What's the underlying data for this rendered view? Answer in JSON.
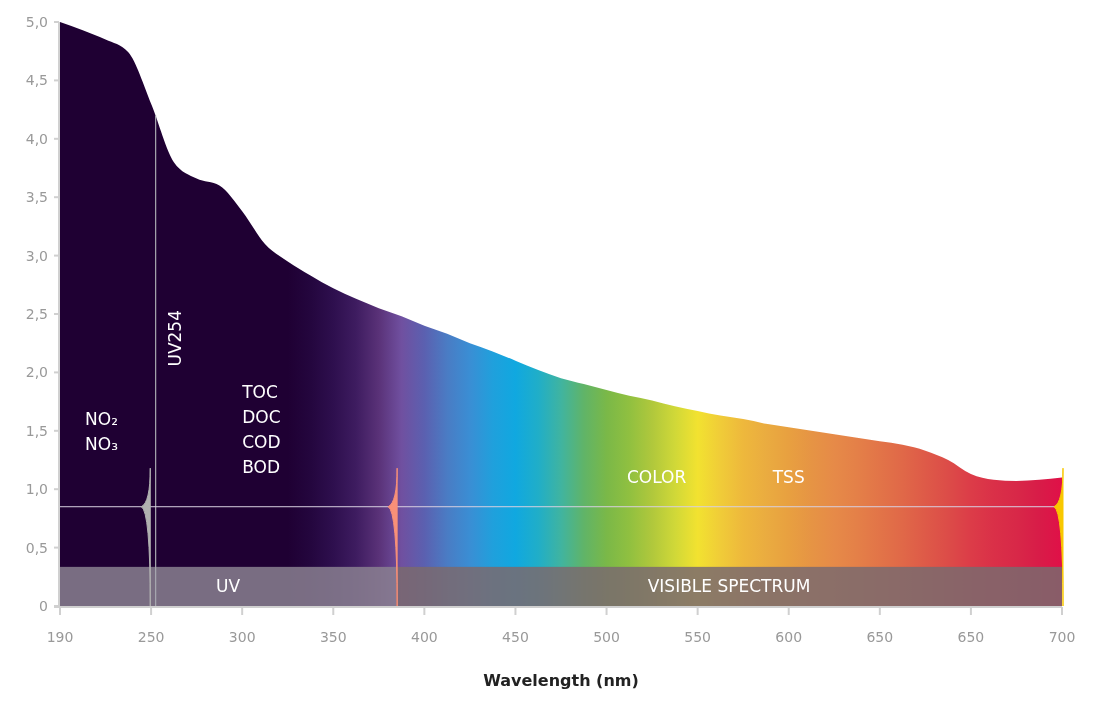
{
  "chart_data": {
    "type": "area",
    "xlabel": "Wavelength (nm)",
    "categories": [
      "190",
      null,
      null,
      null,
      "250",
      null,
      null,
      null,
      "300",
      null,
      null,
      null,
      "350",
      null,
      null,
      null,
      "400",
      null,
      null,
      null,
      "450",
      null,
      null,
      null,
      "500",
      null,
      null,
      null,
      "550",
      null,
      null,
      null,
      "600",
      null,
      null,
      null,
      "650",
      null,
      null,
      null,
      "650",
      null,
      null,
      null,
      "700"
    ],
    "ylim": [
      0,
      5
    ],
    "yticks": [
      {
        "value": 0,
        "label": "0"
      },
      {
        "value": 0.5,
        "label": "0,5"
      },
      {
        "value": 1,
        "label": "1,0"
      },
      {
        "value": 1.5,
        "label": "1,5"
      },
      {
        "value": 2,
        "label": "2,0"
      },
      {
        "value": 2.5,
        "label": "2,5"
      },
      {
        "value": 3,
        "label": "3,0"
      },
      {
        "value": 3.5,
        "label": "3,5"
      },
      {
        "value": 4,
        "label": "4,0"
      },
      {
        "value": 4.5,
        "label": "4,5"
      },
      {
        "value": 5,
        "label": "5,0"
      }
    ],
    "grid": false,
    "series": [
      {
        "values": [
          5,
          4.93,
          4.85,
          4.74,
          4.3,
          3.8,
          3.66,
          3.6,
          3.38,
          3.1,
          2.95,
          2.83,
          2.72,
          2.63,
          2.55,
          2.48,
          2.4,
          2.33,
          2.25,
          2.18,
          2.1,
          2.02,
          1.95,
          1.9,
          1.85,
          1.8,
          1.76,
          1.71,
          1.67,
          1.63,
          1.6,
          1.56,
          1.53,
          1.5,
          1.47,
          1.44,
          1.41,
          1.38,
          1.33,
          1.25,
          1.13,
          1.08,
          1.07,
          1.08,
          1.1
        ],
        "colors": [
          "#1f0033",
          "#1f0033",
          "#1f0033",
          "#1f0033",
          "#1f0033",
          "#1f0033",
          "#1f0033",
          "#1f0033",
          "#1f0033",
          "#1f0033",
          "#1f0033",
          "#24063e",
          "#2e0f4e",
          "#3e1c60",
          "#5a3278",
          "#7050a0",
          "#5b60b0",
          "#4a7cc4",
          "#3a8ed4",
          "#20a0dc",
          "#10a8e0",
          "#20aec8",
          "#40b4a0",
          "#60b468",
          "#7ab848",
          "#90c040",
          "#b0c83c",
          "#d0d838",
          "#f2e230",
          "#f0cc38",
          "#eeb83c",
          "#eaac40",
          "#e8a040",
          "#e69444",
          "#e68a48",
          "#e48048",
          "#e27448",
          "#e06848",
          "#de5a48",
          "#dc4c48",
          "#dc3c48",
          "#da3048",
          "#d82848",
          "#d81c48",
          "#e01048"
        ]
      }
    ],
    "ref_lines": [
      {
        "axis": "y",
        "value": 0.85,
        "color": "#d8d0e0"
      }
    ],
    "annotations": [
      "NO₂\nNO₃",
      "TOC\nDOC\nCOD\nBOD",
      "COLOR",
      "TSS",
      "UV254",
      "UV",
      "VISIBLE SPECTRUM"
    ]
  }
}
